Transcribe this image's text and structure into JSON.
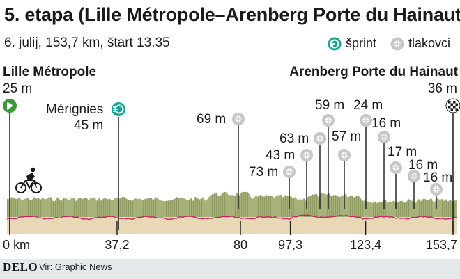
{
  "header": {
    "title": "5. etapa (Lille Métropole–Arenberg Porte du Hainaut)",
    "subtitle": "6. julij, 153,7 km, štart 13.35"
  },
  "legend": {
    "sprint_label": "šprint",
    "climb_label": "tlakovci"
  },
  "start": {
    "place": "Lille Métropole",
    "elevation": "25 m"
  },
  "finish": {
    "place": "Arenberg Porte du Hainaut",
    "elevation": "36 m"
  },
  "sprint": {
    "place": "Mérignies",
    "elevation": "45 m",
    "km": 37.2
  },
  "cobble_sections": [
    {
      "label": "69 m",
      "km": 80
    },
    {
      "label": "73 m",
      "km": 88
    },
    {
      "label": "43 m",
      "km": 93
    },
    {
      "label": "63 m",
      "km": 97.3
    },
    {
      "label": "59 m",
      "km": 104
    },
    {
      "label": "57 m",
      "km": 110
    },
    {
      "label": "24 m",
      "km": 123.4
    },
    {
      "label": "16 m",
      "km": 130
    },
    {
      "label": "17 m",
      "km": 134
    },
    {
      "label": "16 m",
      "km": 141
    },
    {
      "label": "16 m",
      "km": 146
    }
  ],
  "km_axis": [
    "0 km",
    "37,2",
    "80",
    "97,3",
    "123,4",
    "153,7"
  ],
  "footer": {
    "logo": "DELO",
    "source": "Vir: Graphic News"
  },
  "colors": {
    "profile_green": "#a6b27a",
    "profile_base": "#e9d8b6",
    "route_line": "#cf1f63",
    "sprint_teal": "#17a39a",
    "start_green": "#3a9a3a",
    "footer_bg": "#e4e9ec"
  },
  "icons": {
    "start": "start-flag-icon",
    "finish": "checkered-flag-icon",
    "sprint": "sprint-icon",
    "cobbles": "cobbles-icon",
    "rider": "cyclist-icon"
  }
}
